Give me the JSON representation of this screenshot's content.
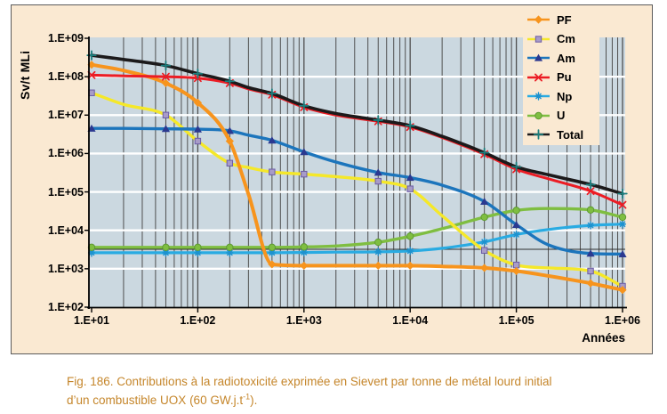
{
  "figure": {
    "y_axis_label": "Sv/t MLi",
    "x_axis_label": "Années"
  },
  "chart_data": {
    "type": "line",
    "title": "",
    "xlabel": "Années",
    "ylabel": "Sv/t MLi",
    "x_scale": "log",
    "y_scale": "log",
    "xlim": [
      10,
      1000000
    ],
    "ylim": [
      100,
      1000000000
    ],
    "x_tick_labels": [
      "1.E+01",
      "1.E+02",
      "1.E+03",
      "1.E+04",
      "1.E+05",
      "1.E+06"
    ],
    "y_tick_labels": [
      "1.E+09",
      "1.E+08",
      "1.E+07",
      "1.E+06",
      "1.E+05",
      "1.E+04",
      "1.E+03",
      "1.E+02"
    ],
    "grid": {
      "vertical": "dark log minor+major lines",
      "horizontal": "white decade lines"
    },
    "legend_position": "top-right",
    "x": [
      10,
      20,
      50,
      100,
      200,
      300,
      500,
      1000,
      2000,
      5000,
      10000,
      20000,
      50000,
      100000,
      200000,
      500000,
      1000000
    ],
    "series": [
      {
        "name": "PF",
        "color": "#F7941D",
        "marker": "diamond",
        "marker_color": "#F7941D",
        "marker_edge": "#D87A10",
        "width": 4,
        "values": [
          205000000,
          145000000,
          68000000,
          21000000,
          2100000,
          87000,
          1300,
          1200,
          1200,
          1200,
          1200,
          1150,
          1050,
          870,
          650,
          420,
          280
        ]
      },
      {
        "name": "Cm",
        "color": "#F5E829",
        "marker": "square",
        "marker_color": "#A89CC8",
        "marker_edge": "#6B5CA5",
        "width": 3.4,
        "values": [
          38000000,
          19000000,
          10000000,
          2100000,
          560000,
          430000,
          330000,
          290000,
          250000,
          190000,
          120000,
          24000,
          3000,
          1250,
          1050,
          870,
          350
        ]
      },
      {
        "name": "Am",
        "color": "#1C75BC",
        "marker": "triangle",
        "marker_color": "#2B3990",
        "marker_edge": "#2B3990",
        "width": 3.4,
        "values": [
          4500000,
          4500000,
          4400000,
          4300000,
          3900000,
          3000000,
          2200000,
          1100000,
          600000,
          320000,
          235000,
          150000,
          56000,
          14000,
          4200,
          2500,
          2400
        ]
      },
      {
        "name": "Pu",
        "color": "#EC1C24",
        "marker": "x",
        "marker_color": "#EC1C24",
        "marker_edge": "#EC1C24",
        "width": 3,
        "values": [
          110000000,
          105000000,
          100000000,
          92000000,
          68000000,
          48000000,
          34000000,
          16000000,
          10000000,
          6900000,
          4900000,
          2600000,
          960000,
          390000,
          220000,
          105000,
          46000
        ]
      },
      {
        "name": "Np",
        "color": "#29ABE2",
        "marker": "asterisk",
        "marker_color": "#1D92CF",
        "marker_edge": "#1D92CF",
        "width": 3.2,
        "values": [
          2600,
          2600,
          2600,
          2600,
          2600,
          2600,
          2600,
          2650,
          2700,
          2750,
          2900,
          3400,
          5000,
          7800,
          10500,
          13500,
          14500
        ]
      },
      {
        "name": "U",
        "color": "#7FBE41",
        "marker": "circle",
        "marker_color": "#7FBE41",
        "marker_edge": "#5E9A33",
        "width": 3.4,
        "values": [
          3600,
          3600,
          3600,
          3600,
          3600,
          3600,
          3600,
          3700,
          3900,
          4900,
          7000,
          11000,
          22000,
          33000,
          37000,
          34000,
          22000
        ]
      },
      {
        "name": "Total",
        "color": "#1C1A1B",
        "marker": "plus",
        "marker_color": "#1B7E7D",
        "marker_edge": "#1B7E7D",
        "width": 3.6,
        "values": [
          360000000,
          280000000,
          195000000,
          120000000,
          76000000,
          52000000,
          36500000,
          17500000,
          11000000,
          7400000,
          5300000,
          2800000,
          1050000,
          450000,
          280000,
          155000,
          90000
        ]
      }
    ],
    "draw_order": [
      "Np",
      "U",
      "Cm",
      "Am",
      "PF",
      "Pu",
      "Total"
    ],
    "marker_x_positions": [
      10,
      50,
      100,
      200,
      500,
      1000,
      5000,
      10000,
      50000,
      100000,
      500000,
      1000000
    ]
  },
  "caption": {
    "line1": "Fig. 186. Contributions à la radiotoxicité exprimée en Sievert par tonne de métal lourd initial",
    "line2_pre": "d’un combustible UOX (60 GW.j.t",
    "line2_sup": "-1",
    "line2_post": ")."
  },
  "colors": {
    "page_bg": "#FFFFFF",
    "figure_bg": "#FAE9D2",
    "figure_border": "#5B5B5B",
    "plot_bg": "#CBD8E0",
    "grid_vertical": "#4F4F4F",
    "grid_horizontal": "#FFFFFF",
    "axis": "#000000",
    "stray_line": "#2F2F2F",
    "caption_text": "#C5862B",
    "tick_label": "#000000"
  }
}
